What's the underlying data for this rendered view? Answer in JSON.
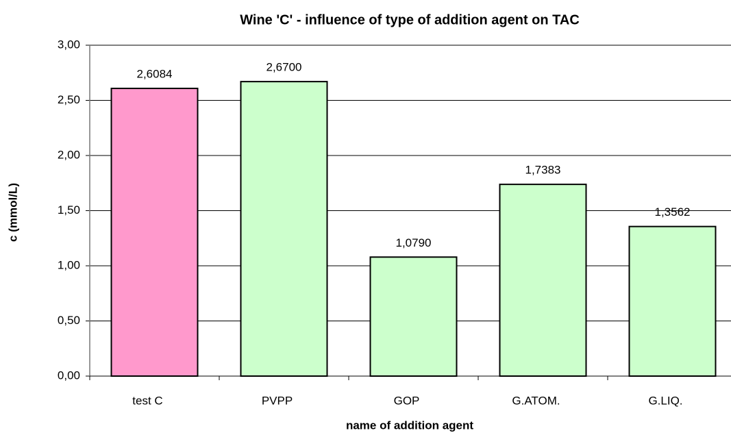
{
  "chart_data": {
    "type": "bar",
    "title": "Wine 'C' - influence of type of addition agent on TAC",
    "x_label": "name of addition agent",
    "y_label": "c  (mmol/L)",
    "categories": [
      "test C",
      "PVPP",
      "GOP",
      "G.ATOM.",
      "G.LIQ."
    ],
    "values": [
      2.6084,
      2.67,
      1.079,
      1.7383,
      1.3562
    ],
    "value_labels": [
      "2,6084",
      "2,6700",
      "1,0790",
      "1,7383",
      "1,3562"
    ],
    "colors": [
      "#ff99cc",
      "#ccffcc",
      "#ccffcc",
      "#ccffcc",
      "#ccffcc"
    ],
    "ylim": [
      0,
      3
    ],
    "yticks": [
      {
        "value": 0,
        "label": "0,00"
      },
      {
        "value": 0.5,
        "label": "0,50"
      },
      {
        "value": 1,
        "label": "1,00"
      },
      {
        "value": 1.5,
        "label": "1,50"
      },
      {
        "value": 2,
        "label": "2,00"
      },
      {
        "value": 2.5,
        "label": "2,50"
      },
      {
        "value": 3,
        "label": "3,00"
      }
    ],
    "grid": true
  }
}
